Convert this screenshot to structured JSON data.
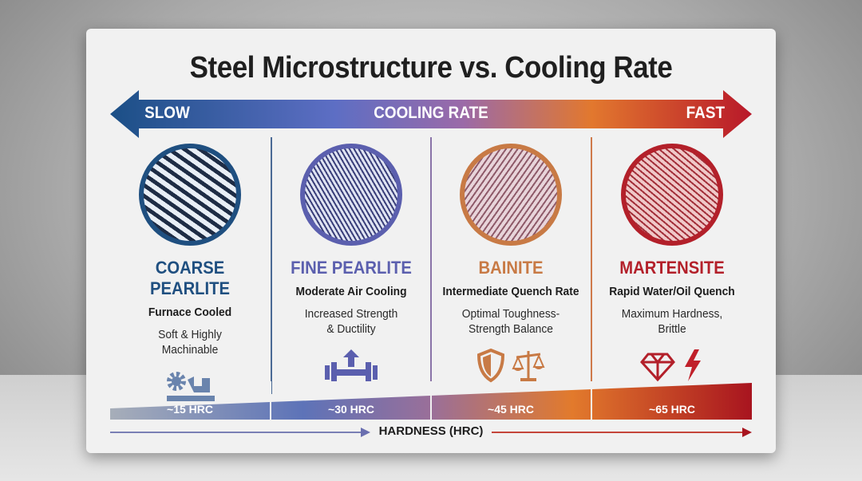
{
  "title": "Steel Microstructure vs. Cooling Rate",
  "cooling_axis": {
    "left": "SLOW",
    "center": "COOLING RATE",
    "right": "FAST"
  },
  "phases": [
    {
      "name": "COARSE PEARLITE",
      "cooling": "Furnace Cooled",
      "desc1": "Soft & Highly",
      "desc2": "Machinable",
      "hardness": "~15 HRC",
      "color": "#1f4f80",
      "icons": [
        "gear-icon",
        "lathe-icon"
      ]
    },
    {
      "name": "FINE PEARLITE",
      "cooling": "Moderate Air Cooling",
      "desc1": "Increased Strength",
      "desc2": "& Ductility",
      "hardness": "~30 HRC",
      "color": "#5b5fae",
      "icons": [
        "dumbbell-up-arrow-icon"
      ]
    },
    {
      "name": "BAINITE",
      "cooling": "Intermediate Quench Rate",
      "desc1": "Optimal Toughness-",
      "desc2": "Strength Balance",
      "hardness": "~45 HRC",
      "color": "#c87a45",
      "icons": [
        "shield-icon",
        "balance-scale-icon"
      ]
    },
    {
      "name": "MARTENSITE",
      "cooling": "Rapid Water/Oil Quench",
      "desc1": "Maximum Hardness,",
      "desc2": "Brittle",
      "hardness": "~65 HRC",
      "color": "#b3202a",
      "icons": [
        "diamond-icon",
        "lightning-icon"
      ]
    }
  ],
  "hardness_axis": "HARDNESS (HRC)"
}
